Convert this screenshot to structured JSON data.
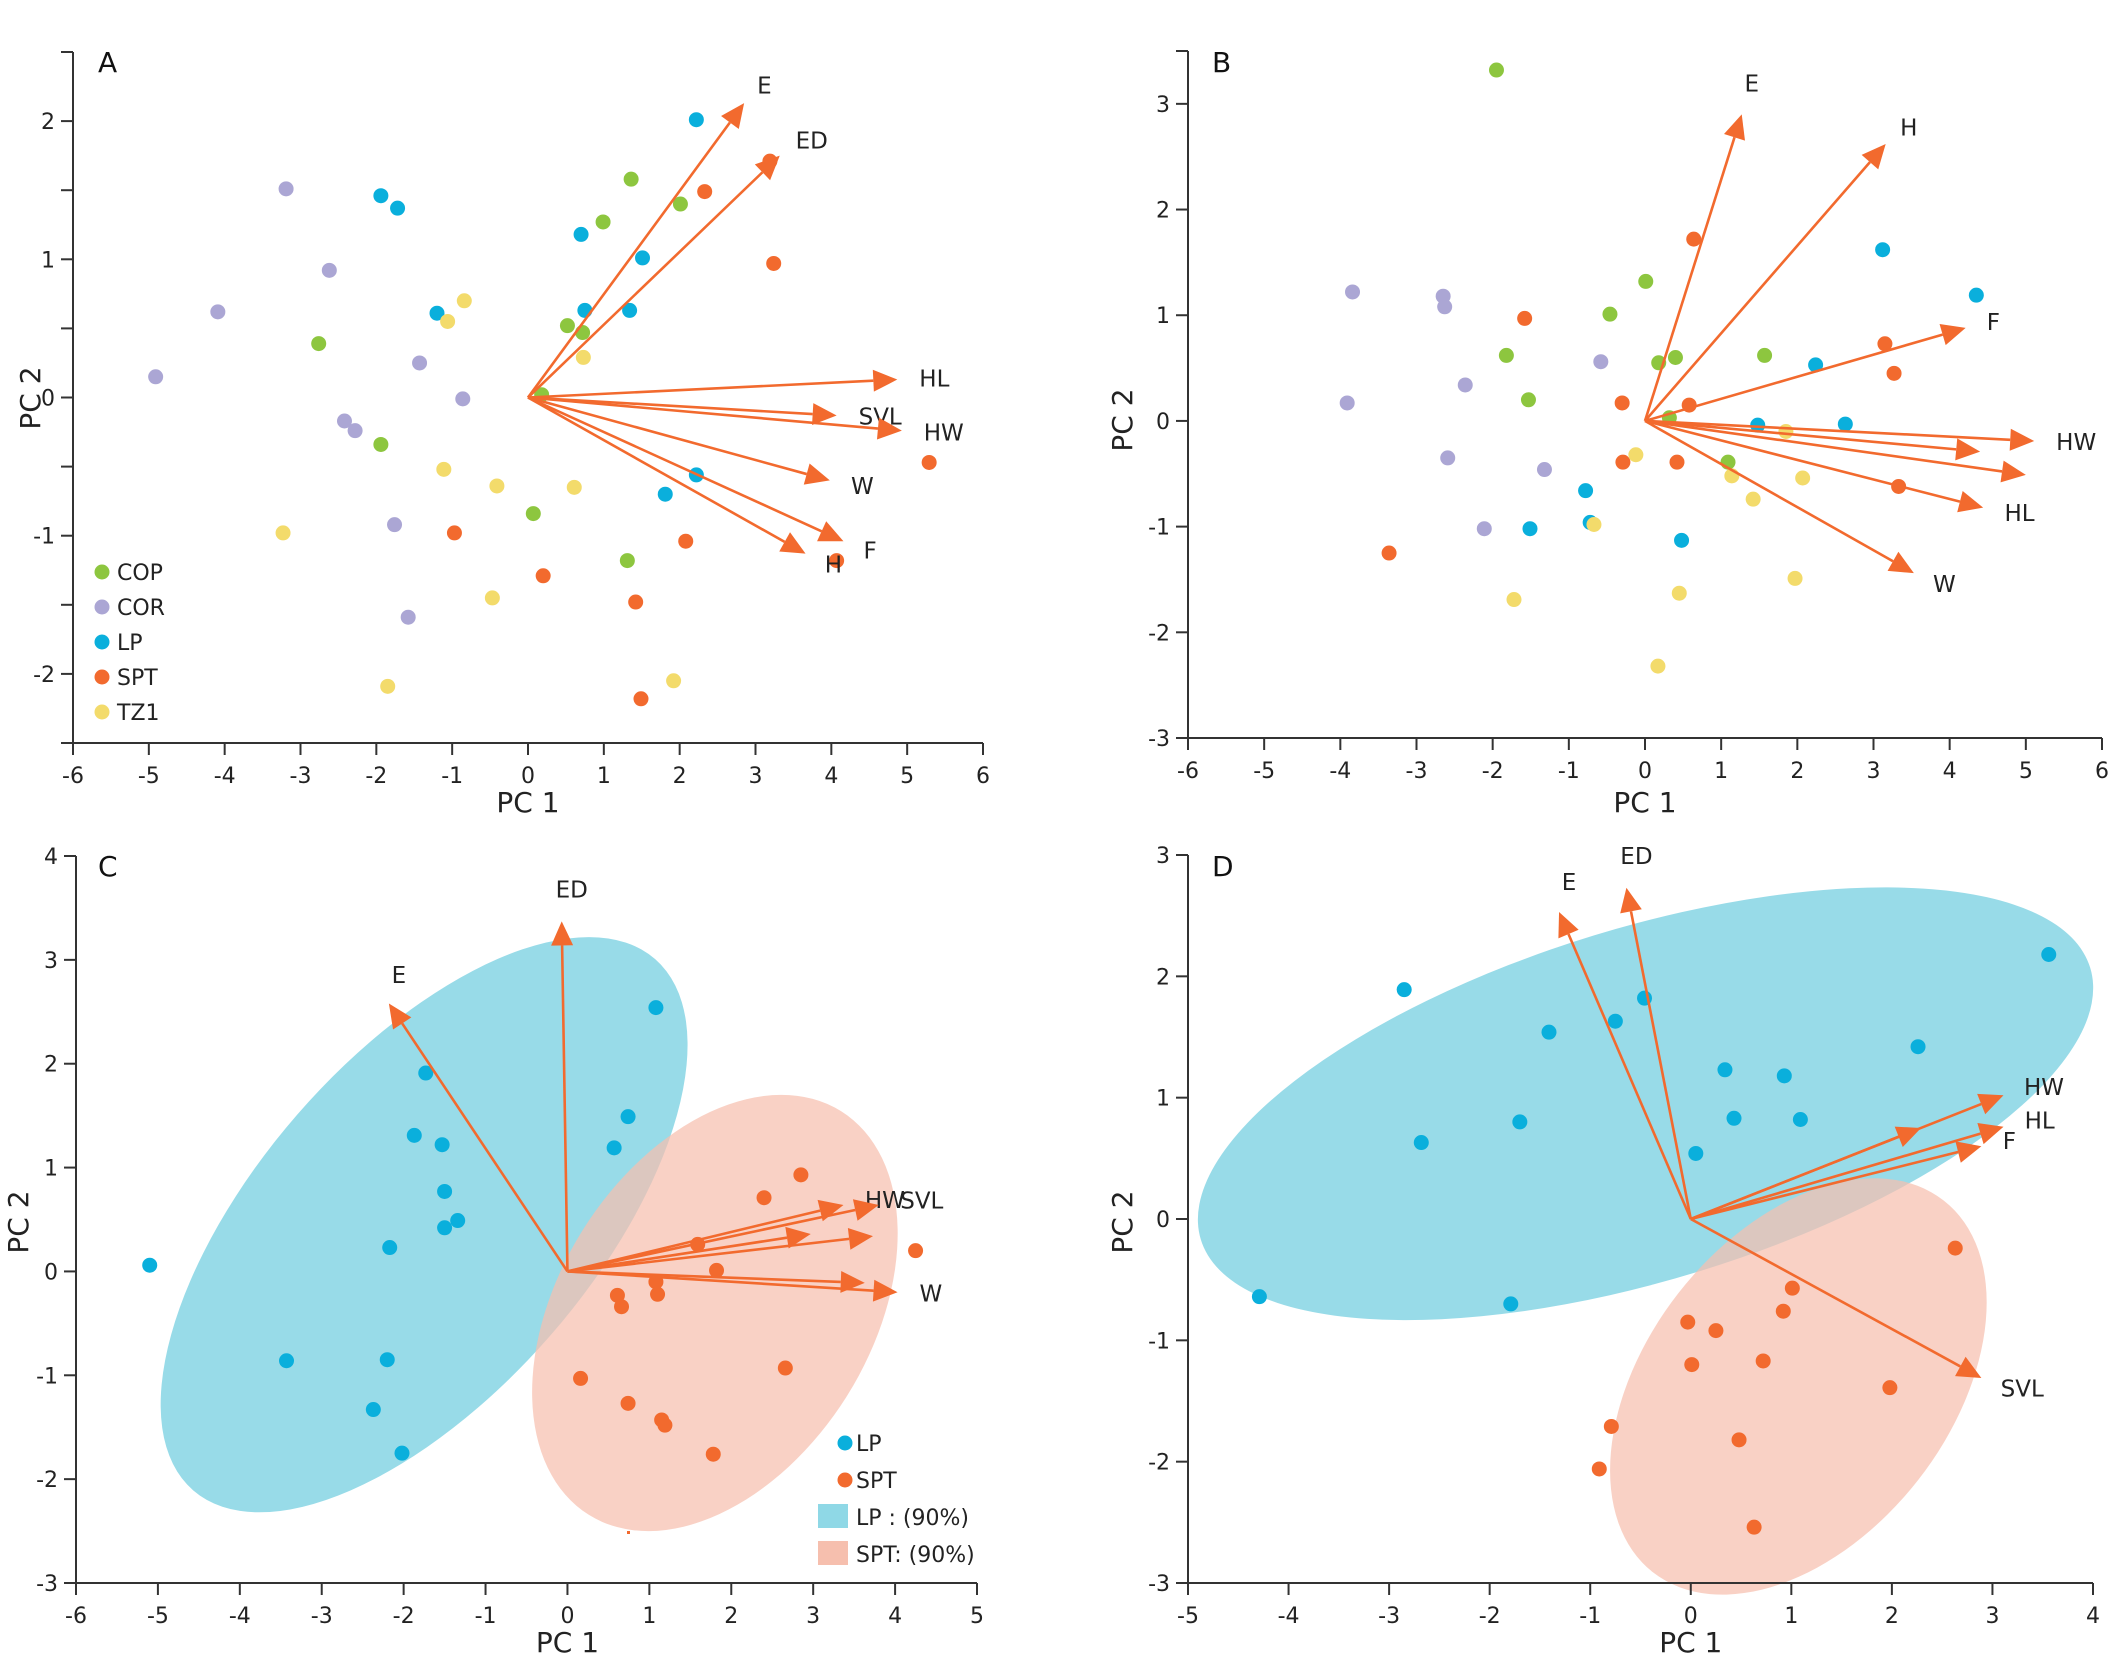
{
  "colors": {
    "COP": "#8DC63F",
    "COR": "#ABA6D4",
    "LP": "#0AAFDC",
    "SPT": "#F26A2E",
    "TZ1": "#F3DB6B",
    "arrow": "#F26A2E",
    "LP_ellipse": "#8FD8E6",
    "SPT_ellipse": "#F6BFAE"
  },
  "chart_data": [
    {
      "panel": "A",
      "type": "scatter",
      "title": "A",
      "xlabel": "PC 1",
      "ylabel": "PC 2",
      "xlim": [
        -6,
        6
      ],
      "ylim": [
        -2.5,
        2.5
      ],
      "xticks": [
        -6,
        -5,
        -4,
        -3,
        -2,
        -1,
        0,
        1,
        2,
        3,
        4,
        5,
        6
      ],
      "yticks": [
        -2,
        -1,
        0,
        1,
        2
      ],
      "ytick_labels": [
        "-2",
        "-1",
        "0",
        "1",
        "2"
      ],
      "legend": {
        "position": "bottom-left",
        "entries": [
          "COP",
          "COR",
          "LP",
          "SPT",
          "TZ1"
        ]
      },
      "series": [
        {
          "name": "COP",
          "points": [
            [
              -2.76,
              0.39
            ],
            [
              -1.94,
              -0.34
            ],
            [
              1.36,
              1.58
            ],
            [
              0.99,
              1.27
            ],
            [
              2.01,
              1.4
            ],
            [
              0.52,
              0.52
            ],
            [
              0.72,
              0.47
            ],
            [
              0.18,
              0.02
            ],
            [
              0.07,
              -0.84
            ],
            [
              1.31,
              -1.18
            ]
          ]
        },
        {
          "name": "COR",
          "points": [
            [
              -3.19,
              1.51
            ],
            [
              -2.62,
              0.92
            ],
            [
              -4.09,
              0.62
            ],
            [
              -4.91,
              0.15
            ],
            [
              -1.43,
              0.25
            ],
            [
              -0.86,
              -0.01
            ],
            [
              -2.42,
              -0.17
            ],
            [
              -2.28,
              -0.24
            ],
            [
              -1.76,
              -0.92
            ],
            [
              -1.58,
              -1.59
            ]
          ]
        },
        {
          "name": "LP",
          "points": [
            [
              -1.94,
              1.46
            ],
            [
              -1.72,
              1.37
            ],
            [
              -1.2,
              0.61
            ],
            [
              0.7,
              1.18
            ],
            [
              1.51,
              1.01
            ],
            [
              0.75,
              0.63
            ],
            [
              1.34,
              0.63
            ],
            [
              2.22,
              2.01
            ],
            [
              2.22,
              -0.56
            ],
            [
              1.81,
              -0.7
            ]
          ]
        },
        {
          "name": "SPT",
          "points": [
            [
              2.33,
              1.49
            ],
            [
              3.19,
              1.71
            ],
            [
              3.24,
              0.97
            ],
            [
              5.29,
              -0.47
            ],
            [
              4.07,
              -1.18
            ],
            [
              2.08,
              -1.04
            ],
            [
              -0.97,
              -0.98
            ],
            [
              0.2,
              -1.29
            ],
            [
              1.42,
              -1.48
            ],
            [
              1.49,
              -2.18
            ]
          ]
        },
        {
          "name": "TZ1",
          "points": [
            [
              -0.84,
              0.7
            ],
            [
              -1.06,
              0.55
            ],
            [
              0.73,
              0.29
            ],
            [
              -1.11,
              -0.52
            ],
            [
              -0.41,
              -0.64
            ],
            [
              0.61,
              -0.65
            ],
            [
              -3.23,
              -0.98
            ],
            [
              -0.47,
              -1.45
            ],
            [
              -1.85,
              -2.09
            ],
            [
              1.92,
              -2.05
            ]
          ]
        }
      ],
      "loadings": [
        {
          "label": "E",
          "x": 2.85,
          "y": 2.13
        },
        {
          "label": "ED",
          "x": 3.32,
          "y": 1.75
        },
        {
          "label": "HL",
          "x": 4.87,
          "y": 0.13
        },
        {
          "label": "SVL",
          "x": 4.07,
          "y": -0.13
        },
        {
          "label": "HW",
          "x": 4.93,
          "y": -0.24
        },
        {
          "label": "W",
          "x": 3.98,
          "y": -0.6
        },
        {
          "label": "F",
          "x": 4.16,
          "y": -1.04
        },
        {
          "label": "H",
          "x": 3.66,
          "y": -1.13
        }
      ]
    },
    {
      "panel": "B",
      "type": "scatter",
      "title": "B",
      "xlabel": "PC 1",
      "ylabel": "PC 2",
      "xlim": [
        -6,
        6
      ],
      "ylim": [
        -3,
        3.5
      ],
      "xticks": [
        -6,
        -5,
        -4,
        -3,
        -2,
        -1,
        0,
        1,
        2,
        3,
        4,
        5,
        6
      ],
      "yticks": [
        -3,
        -2,
        -1,
        0,
        1,
        2,
        3
      ],
      "series": [
        {
          "name": "COP",
          "points": [
            [
              -1.95,
              3.32
            ],
            [
              0.01,
              1.32
            ],
            [
              -0.46,
              1.01
            ],
            [
              -1.82,
              0.62
            ],
            [
              -1.53,
              0.2
            ],
            [
              0.18,
              0.55
            ],
            [
              0.4,
              0.6
            ],
            [
              1.57,
              0.62
            ],
            [
              0.32,
              0.03
            ],
            [
              1.09,
              -0.39
            ]
          ]
        },
        {
          "name": "COR",
          "points": [
            [
              -3.84,
              1.22
            ],
            [
              -2.65,
              1.18
            ],
            [
              -2.63,
              1.08
            ],
            [
              -2.36,
              0.34
            ],
            [
              -3.91,
              0.17
            ],
            [
              -0.58,
              0.56
            ],
            [
              -2.59,
              -0.35
            ],
            [
              -1.32,
              -0.46
            ],
            [
              -2.11,
              -1.02
            ]
          ]
        },
        {
          "name": "LP",
          "points": [
            [
              3.12,
              1.62
            ],
            [
              4.35,
              1.19
            ],
            [
              2.24,
              0.53
            ],
            [
              1.48,
              -0.04
            ],
            [
              2.63,
              -0.03
            ],
            [
              -0.78,
              -0.66
            ],
            [
              -0.72,
              -0.96
            ],
            [
              -1.51,
              -1.02
            ],
            [
              0.48,
              -1.13
            ]
          ]
        },
        {
          "name": "SPT",
          "points": [
            [
              0.64,
              1.72
            ],
            [
              -1.58,
              0.97
            ],
            [
              3.15,
              0.73
            ],
            [
              3.27,
              0.45
            ],
            [
              0.58,
              0.15
            ],
            [
              -0.3,
              0.17
            ],
            [
              -0.29,
              -0.39
            ],
            [
              0.42,
              -0.39
            ],
            [
              3.33,
              -0.62
            ],
            [
              -3.36,
              -1.25
            ]
          ]
        },
        {
          "name": "TZ1",
          "points": [
            [
              -0.12,
              -0.32
            ],
            [
              1.85,
              -0.1
            ],
            [
              1.14,
              -0.52
            ],
            [
              2.07,
              -0.54
            ],
            [
              1.42,
              -0.74
            ],
            [
              -0.67,
              -0.98
            ],
            [
              1.97,
              -1.49
            ],
            [
              0.45,
              -1.63
            ],
            [
              -1.72,
              -1.69
            ],
            [
              0.17,
              -2.32
            ]
          ]
        }
      ],
      "loadings": [
        {
          "label": "E",
          "x": 1.27,
          "y": 2.9
        },
        {
          "label": "H",
          "x": 3.16,
          "y": 2.62
        },
        {
          "label": "F",
          "x": 4.21,
          "y": 0.88
        },
        {
          "label": "HW",
          "x": 5.11,
          "y": -0.19
        },
        {
          "label": "",
          "x": 4.4,
          "y": -0.29
        },
        {
          "label": "",
          "x": 5.0,
          "y": -0.51
        },
        {
          "label": "HL",
          "x": 4.44,
          "y": -0.82
        },
        {
          "label": "W",
          "x": 3.53,
          "y": -1.44
        }
      ]
    },
    {
      "panel": "C",
      "type": "scatter",
      "title": "C",
      "xlabel": "PC 1",
      "ylabel": "PC 2",
      "xlim": [
        -6,
        5
      ],
      "ylim": [
        -3,
        4
      ],
      "xticks": [
        -6,
        -5,
        -4,
        -3,
        -2,
        -1,
        0,
        1,
        2,
        3,
        4,
        5
      ],
      "yticks": [
        -3,
        -2,
        -1,
        0,
        1,
        2,
        3,
        4
      ],
      "legend": {
        "position": "bottom-right",
        "entries": [
          "LP",
          "SPT",
          "LP : (90%)",
          "SPT: (90%)"
        ]
      },
      "series": [
        {
          "name": "LP",
          "points": [
            [
              -5.1,
              0.06
            ],
            [
              1.08,
              2.54
            ],
            [
              -1.73,
              1.91
            ],
            [
              0.74,
              1.49
            ],
            [
              0.57,
              1.19
            ],
            [
              -1.87,
              1.31
            ],
            [
              -1.53,
              1.22
            ],
            [
              -1.5,
              0.77
            ],
            [
              -1.34,
              0.49
            ],
            [
              -1.5,
              0.42
            ],
            [
              -2.17,
              0.23
            ],
            [
              -3.43,
              -0.86
            ],
            [
              -2.2,
              -0.85
            ],
            [
              -2.37,
              -1.33
            ],
            [
              -2.02,
              -1.75
            ]
          ]
        },
        {
          "name": "SPT",
          "points": [
            [
              2.85,
              0.93
            ],
            [
              2.4,
              0.71
            ],
            [
              1.59,
              0.26
            ],
            [
              1.82,
              0.01
            ],
            [
              4.25,
              0.2
            ],
            [
              1.08,
              -0.1
            ],
            [
              1.1,
              -0.22
            ],
            [
              0.61,
              -0.23
            ],
            [
              0.66,
              -0.34
            ],
            [
              0.16,
              -1.03
            ],
            [
              0.74,
              -1.27
            ],
            [
              1.15,
              -1.43
            ],
            [
              1.19,
              -1.48
            ],
            [
              2.66,
              -0.93
            ],
            [
              1.78,
              -1.76
            ]
          ]
        }
      ],
      "ellipses": [
        {
          "group": "LP",
          "level": "90%",
          "center": [
            -1.75,
            0.45
          ]
        },
        {
          "group": "SPT",
          "level": "90%",
          "center": [
            1.8,
            -0.4
          ]
        }
      ],
      "loadings": [
        {
          "label": "ED",
          "x": -0.07,
          "y": 3.37
        },
        {
          "label": "E",
          "x": -2.18,
          "y": 2.58
        },
        {
          "label": "HW",
          "x": 3.37,
          "y": 0.64
        },
        {
          "label": "SVL",
          "x": 3.8,
          "y": 0.64
        },
        {
          "label": "",
          "x": 2.97,
          "y": 0.36
        },
        {
          "label": "",
          "x": 3.73,
          "y": 0.34
        },
        {
          "label": "",
          "x": 3.63,
          "y": -0.11
        },
        {
          "label": "W",
          "x": 4.03,
          "y": -0.2
        }
      ]
    },
    {
      "panel": "D",
      "type": "scatter",
      "title": "D",
      "xlabel": "PC 1",
      "ylabel": "PC 2",
      "xlim": [
        -5,
        4
      ],
      "ylim": [
        -3,
        3
      ],
      "xticks": [
        -5,
        -4,
        -3,
        -2,
        -1,
        0,
        1,
        2,
        3,
        4
      ],
      "yticks": [
        -3,
        -2,
        -1,
        0,
        1,
        2,
        3
      ],
      "series": [
        {
          "name": "LP",
          "points": [
            [
              3.56,
              2.18
            ],
            [
              -2.85,
              1.89
            ],
            [
              -0.46,
              1.82
            ],
            [
              -0.75,
              1.63
            ],
            [
              -1.41,
              1.54
            ],
            [
              2.26,
              1.42
            ],
            [
              0.34,
              1.23
            ],
            [
              0.93,
              1.18
            ],
            [
              0.43,
              0.83
            ],
            [
              1.09,
              0.82
            ],
            [
              -1.7,
              0.8
            ],
            [
              -2.68,
              0.63
            ],
            [
              0.05,
              0.54
            ],
            [
              -4.29,
              -0.64
            ],
            [
              -1.79,
              -0.7
            ]
          ]
        },
        {
          "name": "SPT",
          "points": [
            [
              2.63,
              -0.24
            ],
            [
              1.01,
              -0.57
            ],
            [
              0.92,
              -0.76
            ],
            [
              -0.03,
              -0.85
            ],
            [
              0.25,
              -0.92
            ],
            [
              0.01,
              -1.2
            ],
            [
              0.72,
              -1.17
            ],
            [
              1.98,
              -1.39
            ],
            [
              -0.79,
              -1.71
            ],
            [
              0.48,
              -1.82
            ],
            [
              -0.91,
              -2.06
            ],
            [
              0.63,
              -2.54
            ]
          ]
        }
      ],
      "ellipses": [
        {
          "group": "LP",
          "level": "90%",
          "center": [
            -0.45,
            0.95
          ]
        },
        {
          "group": "SPT",
          "level": "90%",
          "center": [
            1.07,
            -1.38
          ]
        }
      ],
      "loadings": [
        {
          "label": "E",
          "x": -1.31,
          "y": 2.53
        },
        {
          "label": "ED",
          "x": -0.64,
          "y": 2.73
        },
        {
          "label": "HW",
          "x": 3.11,
          "y": 1.02
        },
        {
          "label": "",
          "x": 2.29,
          "y": 0.75
        },
        {
          "label": "HL",
          "x": 3.11,
          "y": 0.76
        },
        {
          "label": "F",
          "x": 2.89,
          "y": 0.6
        },
        {
          "label": "SVL",
          "x": 2.89,
          "y": -1.31
        }
      ]
    }
  ],
  "legend_A": [
    {
      "label": "COP",
      "color_key": "COP"
    },
    {
      "label": "COR",
      "color_key": "COR"
    },
    {
      "label": "LP",
      "color_key": "LP"
    },
    {
      "label": "SPT",
      "color_key": "SPT"
    },
    {
      "label": "TZ1",
      "color_key": "TZ1"
    }
  ],
  "legend_C": [
    {
      "label": "LP",
      "kind": "dot",
      "color_key": "LP"
    },
    {
      "label": "SPT",
      "kind": "dot",
      "color_key": "SPT"
    },
    {
      "label": "LP : (90%)",
      "kind": "box",
      "color_key": "LP_ellipse"
    },
    {
      "label": "SPT: (90%)",
      "kind": "box",
      "color_key": "SPT_ellipse"
    }
  ]
}
